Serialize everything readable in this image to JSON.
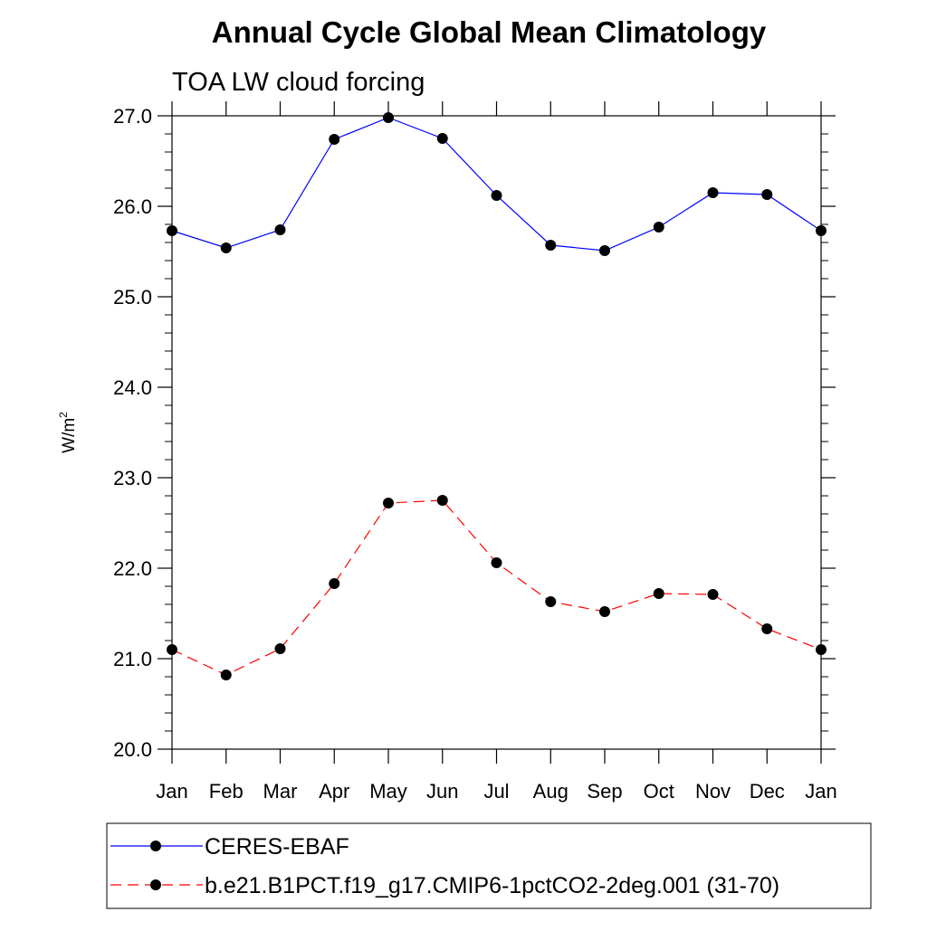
{
  "chart_data": {
    "type": "line",
    "title": "Annual Cycle Global Mean Climatology",
    "subtitle": "TOA LW cloud forcing",
    "ylabel": "W/m",
    "ylabel_sup": "2",
    "xlabel": "",
    "categories": [
      "Jan",
      "Feb",
      "Mar",
      "Apr",
      "May",
      "Jun",
      "Jul",
      "Aug",
      "Sep",
      "Oct",
      "Nov",
      "Dec",
      "Jan"
    ],
    "ylim": [
      20.0,
      27.0
    ],
    "yticks": [
      "20.0",
      "21.0",
      "22.0",
      "23.0",
      "24.0",
      "25.0",
      "26.0",
      "27.0"
    ],
    "grid": false,
    "legend_position": "bottom",
    "series": [
      {
        "name": "CERES-EBAF",
        "color": "#0000ff",
        "line_style": "solid",
        "marker": "filled-circle",
        "values": [
          25.73,
          25.54,
          25.74,
          26.74,
          26.98,
          26.75,
          26.12,
          25.57,
          25.51,
          25.77,
          26.15,
          26.13,
          25.73
        ]
      },
      {
        "name": "b.e21.B1PCT.f19_g17.CMIP6-1pctCO2-2deg.001 (31-70)",
        "color": "#ff0000",
        "line_style": "dashed",
        "marker": "filled-circle",
        "values": [
          21.1,
          20.82,
          21.11,
          21.83,
          22.72,
          22.75,
          22.06,
          21.63,
          21.52,
          21.72,
          21.71,
          21.33,
          21.1
        ]
      }
    ]
  }
}
